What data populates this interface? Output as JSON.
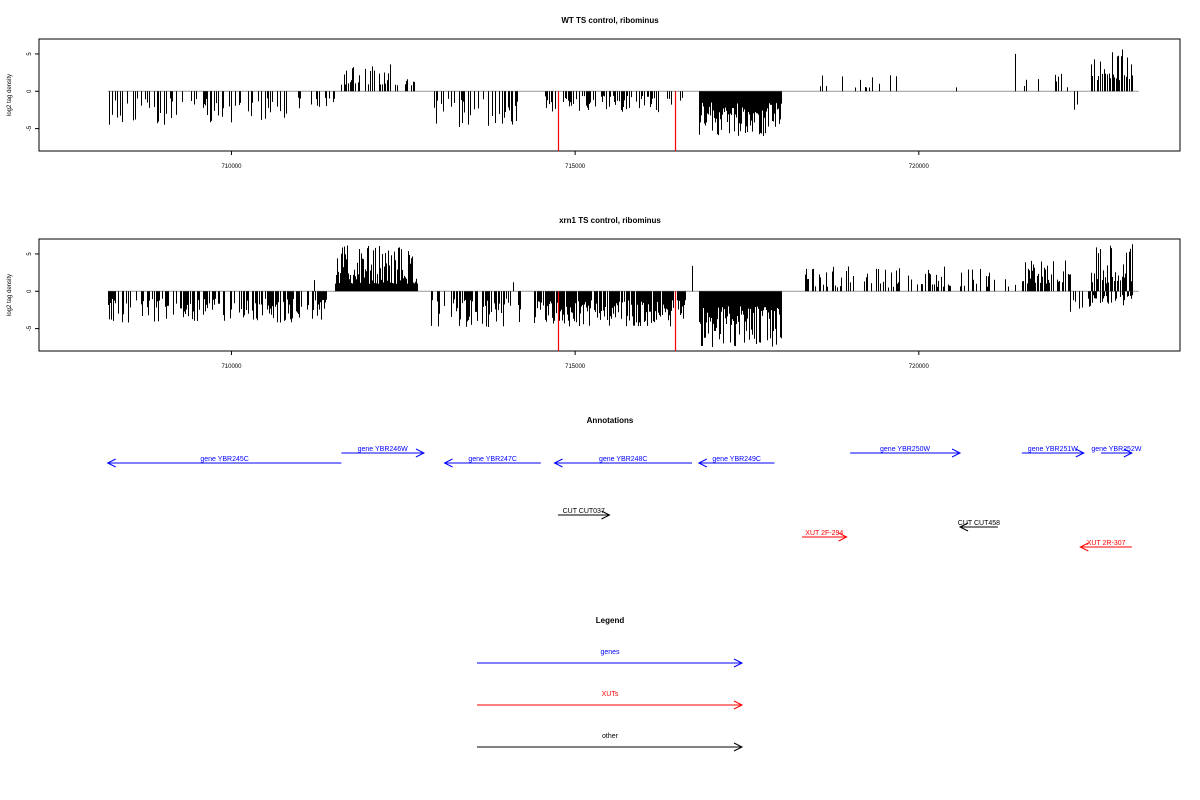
{
  "chart_data": [
    {
      "type": "bar",
      "title": "WT TS control, ribominus",
      "ylabel": "log2 tag density",
      "xlim": [
        707200,
        723800
      ],
      "ylim": [
        -8,
        7
      ],
      "x_ticks": [
        710000,
        715000,
        720000
      ],
      "x_tick_labels": [
        "710000",
        "715000",
        "720000"
      ],
      "y_ticks": [
        -5,
        0,
        5
      ],
      "y_tick_labels": [
        "-5",
        "0",
        "5"
      ],
      "baseline": {
        "value": 0,
        "color": "#999999",
        "x_range": [
          708200,
          723200
        ]
      },
      "segments": [
        {
          "x0": 708200,
          "x1": 711500,
          "min": -4.5,
          "max": -0.8,
          "density": 0.35
        },
        {
          "x0": 711600,
          "x1": 712700,
          "min": 0.8,
          "max": 3.5,
          "density": 0.45
        },
        {
          "x0": 712900,
          "x1": 714200,
          "min": -4.8,
          "max": -0.8,
          "density": 0.4
        },
        {
          "x0": 714500,
          "x1": 716600,
          "min": -2.8,
          "max": -0.6,
          "density": 0.45
        },
        {
          "x0": 716800,
          "x1": 718000,
          "min": -6.2,
          "max": -1.5,
          "density": 1.0
        },
        {
          "x0": 718500,
          "x1": 720700,
          "min": 0.5,
          "max": 2.2,
          "density": 0.08
        },
        {
          "x0": 721500,
          "x1": 722200,
          "min": 0.5,
          "max": 2.5,
          "density": 0.25
        },
        {
          "x0": 722200,
          "x1": 722500,
          "min": -2.5,
          "max": -0.8,
          "density": 0.3
        },
        {
          "x0": 722500,
          "x1": 723100,
          "min": 1.5,
          "max": 5.5,
          "density": 0.6
        }
      ],
      "peaks": [
        {
          "x": 721400,
          "y": 5.0
        },
        {
          "x": 722950,
          "y": 5.6
        },
        {
          "x": 712300,
          "y": 3.6
        }
      ],
      "highlight_lines": [
        {
          "x": 714750,
          "y": -8,
          "color": "#ff0000"
        },
        {
          "x": 716450,
          "y": -8,
          "color": "#ff0000"
        }
      ]
    },
    {
      "type": "bar",
      "title": "xrn1 TS control, ribominus",
      "ylabel": "log2 tag density",
      "xlim": [
        707200,
        723800
      ],
      "ylim": [
        -8,
        7
      ],
      "x_ticks": [
        710000,
        715000,
        720000
      ],
      "x_tick_labels": [
        "710000",
        "715000",
        "720000"
      ],
      "y_ticks": [
        -5,
        0,
        5
      ],
      "y_tick_labels": [
        "-5",
        "0",
        "5"
      ],
      "baseline": {
        "value": 0,
        "color": "#999999",
        "x_range": [
          708200,
          723200
        ]
      },
      "segments": [
        {
          "x0": 708200,
          "x1": 711400,
          "min": -4.2,
          "max": -1.0,
          "density": 0.55
        },
        {
          "x0": 711500,
          "x1": 712700,
          "min": 1.0,
          "max": 6.2,
          "density": 1.0
        },
        {
          "x0": 712900,
          "x1": 714200,
          "min": -4.8,
          "max": -1.0,
          "density": 0.6
        },
        {
          "x0": 714400,
          "x1": 716600,
          "min": -4.8,
          "max": -1.2,
          "density": 0.9
        },
        {
          "x0": 716800,
          "x1": 718000,
          "min": -7.5,
          "max": -2.0,
          "density": 1.0
        },
        {
          "x0": 718300,
          "x1": 720700,
          "min": 0.5,
          "max": 3.5,
          "density": 0.35
        },
        {
          "x0": 720700,
          "x1": 721500,
          "min": 0.5,
          "max": 3.0,
          "density": 0.25
        },
        {
          "x0": 721500,
          "x1": 722200,
          "min": 1.0,
          "max": 4.5,
          "density": 0.7
        },
        {
          "x0": 722200,
          "x1": 722500,
          "min": -3.0,
          "max": -0.8,
          "density": 0.5
        },
        {
          "x0": 722500,
          "x1": 723100,
          "min": 1.0,
          "max": 6.5,
          "density": 0.8
        },
        {
          "x0": 722500,
          "x1": 723100,
          "min": -2.2,
          "max": -0.5,
          "density": 0.4
        }
      ],
      "peaks": [
        {
          "x": 714100,
          "y": 1.2
        },
        {
          "x": 716700,
          "y": 3.4
        },
        {
          "x": 711200,
          "y": 1.5
        }
      ],
      "highlight_lines": [
        {
          "x": 714750,
          "y": -8,
          "color": "#ff0000"
        },
        {
          "x": 716450,
          "y": -8,
          "color": "#ff0000"
        }
      ]
    }
  ],
  "annotations": {
    "title": "Annotations",
    "features": [
      {
        "label": "gene YBR245C",
        "start": 708200,
        "end": 711600,
        "strand": "-",
        "row": 1,
        "color": "#0000ff"
      },
      {
        "label": "gene YBR246W",
        "start": 711600,
        "end": 712800,
        "strand": "+",
        "row": 0,
        "color": "#0000ff"
      },
      {
        "label": "gene YBR247C",
        "start": 713100,
        "end": 714500,
        "strand": "-",
        "row": 1,
        "color": "#0000ff"
      },
      {
        "label": "gene YBR248C",
        "start": 714700,
        "end": 716700,
        "strand": "-",
        "row": 1,
        "color": "#0000ff"
      },
      {
        "label": "gene YBR249C",
        "start": 716800,
        "end": 717900,
        "strand": "-",
        "row": 1,
        "color": "#0000ff"
      },
      {
        "label": "gene YBR250W",
        "start": 719000,
        "end": 720600,
        "strand": "+",
        "row": 0,
        "color": "#0000ff"
      },
      {
        "label": "gene YBR251W",
        "start": 721500,
        "end": 722400,
        "strand": "+",
        "row": 0,
        "color": "#0000ff"
      },
      {
        "label": "gene YBR252W",
        "start": 722650,
        "end": 723100,
        "strand": "+",
        "row": 0,
        "color": "#0000ff"
      },
      {
        "label": "CUT CUT037",
        "start": 714750,
        "end": 715500,
        "strand": "+",
        "row": 2,
        "color": "#000000"
      },
      {
        "label": "CUT CUT458",
        "start": 720600,
        "end": 721150,
        "strand": "-",
        "row": 3,
        "color": "#000000"
      },
      {
        "label": "XUT 2F-294",
        "start": 718300,
        "end": 718950,
        "strand": "+",
        "row": 4,
        "color": "#ff0000"
      },
      {
        "label": "XUT 2R-307",
        "start": 722350,
        "end": 723100,
        "strand": "-",
        "row": 5,
        "color": "#ff0000"
      }
    ]
  },
  "legend": {
    "title": "Legend",
    "items": [
      {
        "label": "genes",
        "color": "#0000ff"
      },
      {
        "label": "XUTs",
        "color": "#ff0000"
      },
      {
        "label": "other",
        "color": "#000000"
      }
    ]
  }
}
